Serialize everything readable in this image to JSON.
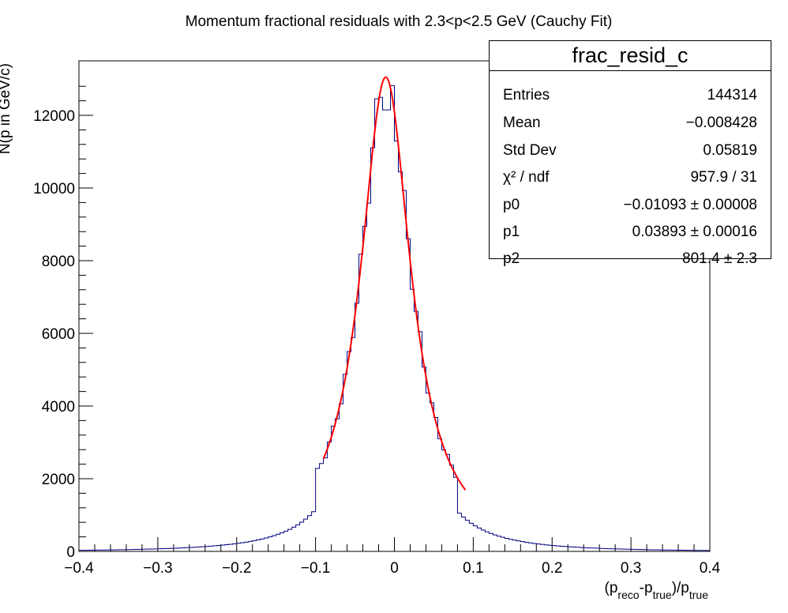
{
  "chart_data": {
    "type": "histogram",
    "title": "Momentum fractional residuals with 2.3<p<2.5 GeV (Cauchy Fit)",
    "xlabel": "(p_reco-p_true)/p_true",
    "ylabel": "N(p in GeV/c)",
    "xlim": [
      -0.4,
      0.4
    ],
    "ylim": [
      0,
      13500
    ],
    "x_ticks": [
      "-0.4",
      "-0.3",
      "-0.2",
      "-0.1",
      "0",
      "0.1",
      "0.2",
      "0.3",
      "0.4"
    ],
    "y_ticks": [
      "0",
      "2000",
      "4000",
      "6000",
      "8000",
      "10000",
      "12000"
    ],
    "bin_width": 0.005,
    "histogram_color": "#000080",
    "fit_color": "#ff0000",
    "fit": {
      "function": "cauchy",
      "range": [
        -0.09,
        0.09
      ],
      "p0": -0.01093,
      "p1": 0.03893,
      "p2": 801.4
    }
  },
  "stats": {
    "name": "frac_resid_c",
    "rows": [
      {
        "label": "Entries",
        "value": "144314"
      },
      {
        "label": "Mean",
        "value": "−0.008428"
      },
      {
        "label": "Std Dev",
        "value": "0.05819"
      },
      {
        "label": "χ² / ndf",
        "value": "957.9 / 31"
      },
      {
        "label": "p0",
        "value": "−0.01093 ± 0.00008"
      },
      {
        "label": "p1",
        "value": "0.03893 ± 0.00016"
      },
      {
        "label": "p2",
        "value": "801.4 ± 2.3"
      }
    ]
  }
}
